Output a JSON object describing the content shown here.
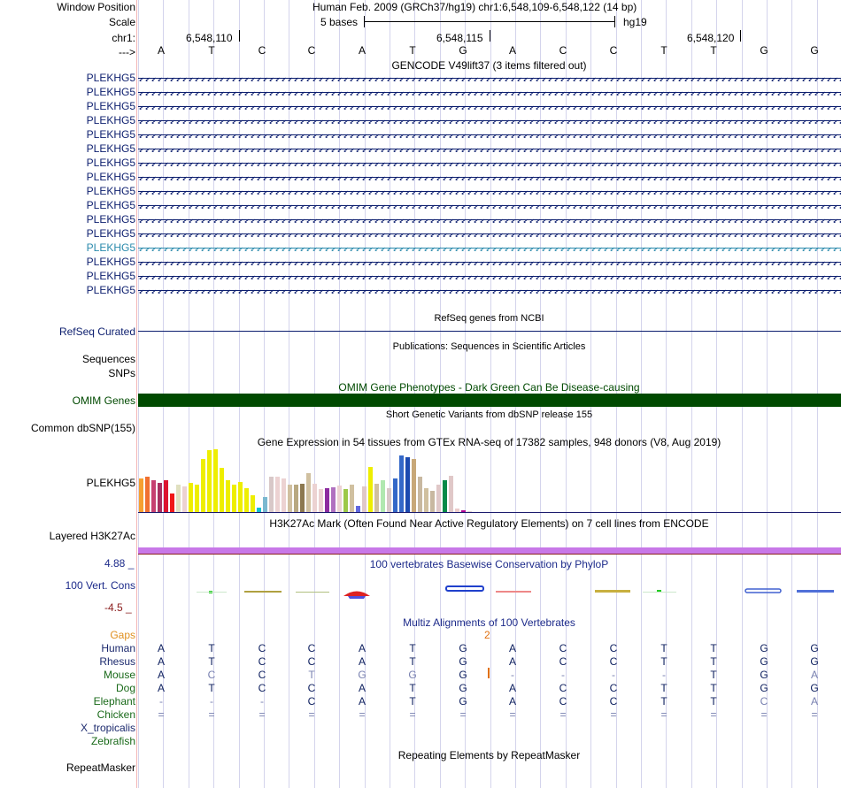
{
  "header": {
    "window_position_label": "Window Position",
    "title": "Human Feb. 2009 (GRCh37/hg19)   chr1:6,548,109-6,548,122 (14 bp)",
    "scale_label": "Scale",
    "scale_text": "5 bases",
    "assembly": "hg19",
    "chrom_label": "chr1:",
    "strand_label": "--->",
    "positions": [
      "6,548,110",
      "6,548,115",
      "6,548,120"
    ],
    "bases": [
      "A",
      "T",
      "C",
      "C",
      "A",
      "T",
      "G",
      "A",
      "C",
      "C",
      "T",
      "T",
      "G",
      "G"
    ]
  },
  "gencode": {
    "title": "GENCODE V49lift37 (3 items filtered out)",
    "items": [
      "PLEKHG5",
      "PLEKHG5",
      "PLEKHG5",
      "PLEKHG5",
      "PLEKHG5",
      "PLEKHG5",
      "PLEKHG5",
      "PLEKHG5",
      "PLEKHG5",
      "PLEKHG5",
      "PLEKHG5",
      "PLEKHG5",
      "PLEKHG5",
      "PLEKHG5",
      "PLEKHG5",
      "PLEKHG5"
    ],
    "highlight_index": 12,
    "color": "#0c1e6e",
    "highlight_color": "#2a8aac"
  },
  "refseq": {
    "title": "RefSeq genes from NCBI",
    "label": "RefSeq Curated"
  },
  "publications": {
    "title": "Publications: Sequences in Scientific Articles",
    "label1": "Sequences",
    "label2": "SNPs"
  },
  "omim": {
    "title": "OMIM Gene Phenotypes - Dark Green Can Be Disease-causing",
    "label": "OMIM Genes",
    "color": "#004a00"
  },
  "dbsnp": {
    "title": "Short Genetic Variants from dbSNP release 155",
    "label": "Common dbSNP(155)"
  },
  "gtex": {
    "title": "Gene Expression in 54 tissues from GTEx RNA-seq of 17382 samples, 948 donors (V8, Aug 2019)",
    "label": "PLEKHG5",
    "values": [
      38,
      40,
      36,
      34,
      36,
      22,
      32,
      30,
      34,
      32,
      60,
      70,
      71,
      50,
      36,
      32,
      35,
      28,
      20,
      6,
      18,
      40,
      40,
      38,
      32,
      32,
      33,
      44,
      33,
      27,
      28,
      29,
      31,
      27,
      32,
      8,
      30,
      51,
      33,
      36,
      28,
      38,
      64,
      62,
      60,
      40,
      28,
      25,
      32,
      36,
      41,
      5,
      3,
      2
    ],
    "colors": [
      "#f6a030",
      "#f07030",
      "#c64070",
      "#a83060",
      "#dc1430",
      "#f01818",
      "#e0e0c0",
      "#ecd2d2",
      "#eeee00",
      "#eeee00",
      "#eeee00",
      "#eeee00",
      "#eeee00",
      "#eeee00",
      "#eeee00",
      "#eeee00",
      "#eeee00",
      "#eeee00",
      "#eeee00",
      "#10c0d0",
      "#7ab8d0",
      "#d8c8c8",
      "#ecd2d2",
      "#ecd2d2",
      "#d0c0a0",
      "#b8a880",
      "#8c7850",
      "#d0c0a0",
      "#ecd2d2",
      "#ecd2d2",
      "#8c2ca0",
      "#b070c0",
      "#ecd2d2",
      "#9cc848",
      "#d0c0a0",
      "#6068e0",
      "#e0c8c8",
      "#eeee00",
      "#d0c0a0",
      "#b0e8b0",
      "#d8c8c8",
      "#3468c8",
      "#3468c8",
      "#1c4ab0",
      "#c8a878",
      "#c8b8a0",
      "#d0c0a0",
      "#c8b8a0",
      "#e0c8c8",
      "#088a48",
      "#e0c8c8",
      "#eccccc",
      "#b00090",
      "#e0d0d0"
    ]
  },
  "h3k27ac": {
    "title": "H3K27Ac Mark (Often Found Near Active Regulatory Elements) on 7 cell lines from ENCODE",
    "label": "Layered H3K27Ac",
    "color": "#c878e8"
  },
  "phylop": {
    "title": "100 vertebrates Basewise Conservation by PhyloP",
    "label": "100 Vert. Cons",
    "max_label": "4.88 _",
    "min_label": "-4.5 _"
  },
  "multiz": {
    "title": "Multiz Alignments of 100 Vertebrates",
    "gaps_label": "Gaps",
    "gap_value": "2",
    "species": [
      {
        "name": "Human",
        "bases": [
          "A",
          "T",
          "C",
          "C",
          "A",
          "T",
          "G",
          "A",
          "C",
          "C",
          "T",
          "T",
          "G",
          "G"
        ],
        "dim": []
      },
      {
        "name": "Rhesus",
        "bases": [
          "A",
          "T",
          "C",
          "C",
          "A",
          "T",
          "G",
          "A",
          "C",
          "C",
          "T",
          "T",
          "G",
          "G"
        ],
        "dim": []
      },
      {
        "name": "Mouse",
        "bases": [
          "A",
          "C",
          "C",
          "T",
          "G",
          "G",
          "G",
          "-",
          "-",
          "-",
          "-",
          "T",
          "G",
          "A"
        ],
        "dim": [
          1,
          3,
          4,
          5,
          7,
          8,
          9,
          10,
          13
        ]
      },
      {
        "name": "Dog",
        "bases": [
          "A",
          "T",
          "C",
          "C",
          "A",
          "T",
          "G",
          "A",
          "C",
          "C",
          "T",
          "T",
          "G",
          "G"
        ],
        "dim": []
      },
      {
        "name": "Elephant",
        "bases": [
          "-",
          "-",
          "-",
          "C",
          "A",
          "T",
          "G",
          "A",
          "C",
          "C",
          "T",
          "T",
          "C",
          "A"
        ],
        "dim": [
          0,
          1,
          2,
          12,
          13
        ]
      },
      {
        "name": "Chicken",
        "bases": [
          "=",
          "=",
          "=",
          "=",
          "=",
          "=",
          "=",
          "=",
          "=",
          "=",
          "=",
          "=",
          "=",
          "="
        ],
        "dim": [
          0,
          1,
          2,
          3,
          4,
          5,
          6,
          7,
          8,
          9,
          10,
          11,
          12,
          13
        ]
      },
      {
        "name": "X_tropicalis",
        "bases": [],
        "dim": []
      },
      {
        "name": "Zebrafish",
        "bases": [],
        "dim": []
      }
    ]
  },
  "repeatmasker": {
    "title": "Repeating Elements by RepeatMasker",
    "label": "RepeatMasker"
  }
}
